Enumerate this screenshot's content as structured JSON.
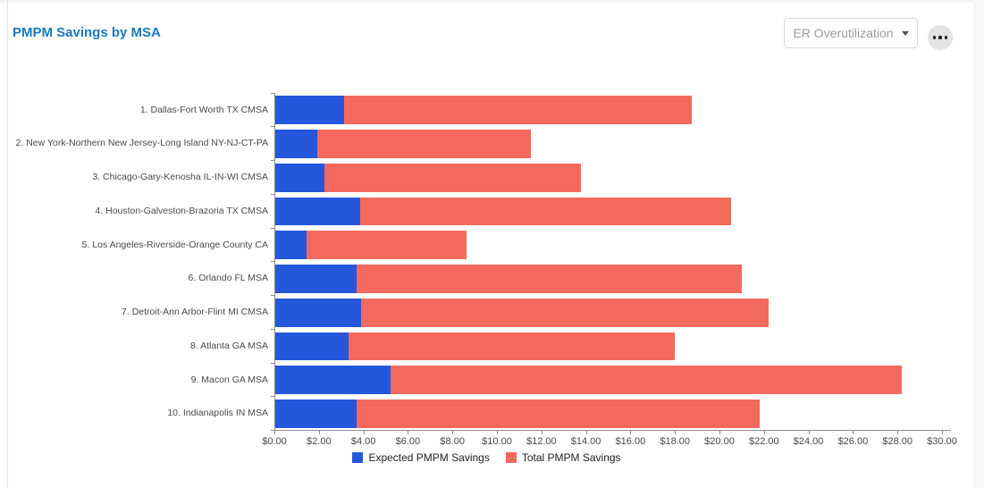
{
  "header": {
    "title": "PMPM Savings by MSA",
    "dropdown_label": "ER Overutilization",
    "more_options": "..."
  },
  "colors": {
    "title_text": "#1878be",
    "expected_series": "#2457db",
    "total_series": "#f4695e",
    "axis_line": "#8c8c8c",
    "axis_text": "#484848",
    "dropdown_text": "#9b9b9b",
    "page_background": "#f7f7f7"
  },
  "chart_data": {
    "type": "bar",
    "orientation": "horizontal",
    "stacked": true,
    "title": "PMPM Savings by MSA",
    "categories": [
      "1. Dallas-Fort Worth TX CMSA",
      "2. New York-Northern New Jersey-Long Island NY-NJ-CT-PA",
      "3. Chicago-Gary-Kenosha IL-IN-WI CMSA",
      "4. Houston-Galveston-Brazoria TX CMSA",
      "5. Los Angeles-Riverside-Orange County CA",
      "6. Orlando FL MSA",
      "7. Detroit-Ann Arbor-Flint MI CMSA",
      "8. Atlanta GA MSA",
      "9. Macon GA MSA",
      "10. Indianapolis IN MSA"
    ],
    "series": [
      {
        "name": "Expected PMPM Savings",
        "color": "#2457db",
        "values": [
          3.1,
          1.87,
          2.2,
          3.8,
          1.4,
          3.65,
          3.85,
          3.3,
          5.2,
          3.65
        ]
      },
      {
        "name": "Total PMPM Savings",
        "color": "#f4695e",
        "values": [
          18.7,
          11.5,
          13.75,
          20.5,
          8.6,
          20.95,
          22.15,
          17.95,
          28.15,
          21.75
        ],
        "note": "bar end position; red segment spans from expected value to total value"
      }
    ],
    "x_axis": {
      "min": 0,
      "max": 30,
      "step": 2,
      "tick_labels": [
        "$0.00",
        "$2.00",
        "$4.00",
        "$6.00",
        "$8.00",
        "$10.00",
        "$12.00",
        "$14.00",
        "$16.00",
        "$18.00",
        "$20.00",
        "$22.00",
        "$24.00",
        "$26.00",
        "$28.00",
        "$30.00"
      ]
    },
    "legend": [
      "Expected PMPM Savings",
      "Total PMPM Savings"
    ],
    "legend_position": "bottom-center",
    "grid": false
  }
}
